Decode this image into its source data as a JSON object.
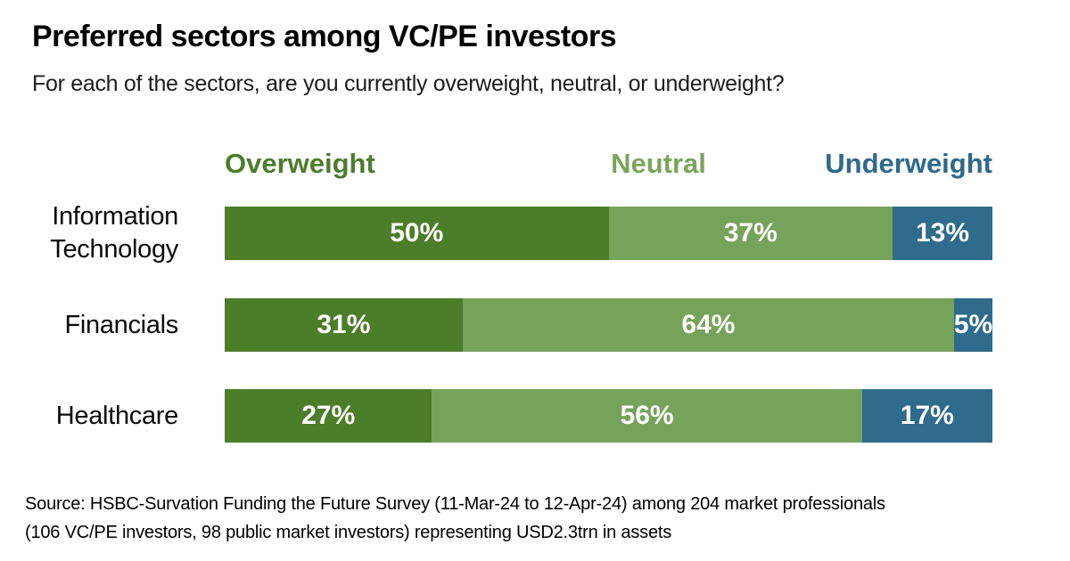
{
  "header": {
    "title": "Preferred sectors among VC/PE investors",
    "subtitle": "For each of the sectors, are you currently overweight, neutral, or underweight?"
  },
  "chart_data": {
    "type": "bar",
    "variant": "horizontal-stacked-100",
    "title": "Preferred sectors among VC/PE investors",
    "subtitle": "For each of the sectors, are you currently overweight, neutral, or underweight?",
    "categories": [
      "Information Technology",
      "Financials",
      "Healthcare"
    ],
    "series": [
      {
        "name": "Overweight",
        "color": "#4c7d28",
        "values": [
          50,
          31,
          27
        ]
      },
      {
        "name": "Neutral",
        "color": "#75a35a",
        "values": [
          37,
          64,
          56
        ]
      },
      {
        "name": "Underweight",
        "color": "#2f6b8a",
        "values": [
          13,
          5,
          17
        ]
      }
    ],
    "value_suffix": "%",
    "xlim": [
      0,
      100
    ],
    "grid": false,
    "legend_position": "top",
    "data_labels": "inside-white-bold"
  },
  "source": {
    "line1": "Source: HSBC-Survation Funding the Future Survey (11-Mar-24 to 12-Apr-24) among 204 market professionals",
    "line2": "(106 VC/PE investors, 98 public market investors) representing USD2.3trn in assets"
  }
}
